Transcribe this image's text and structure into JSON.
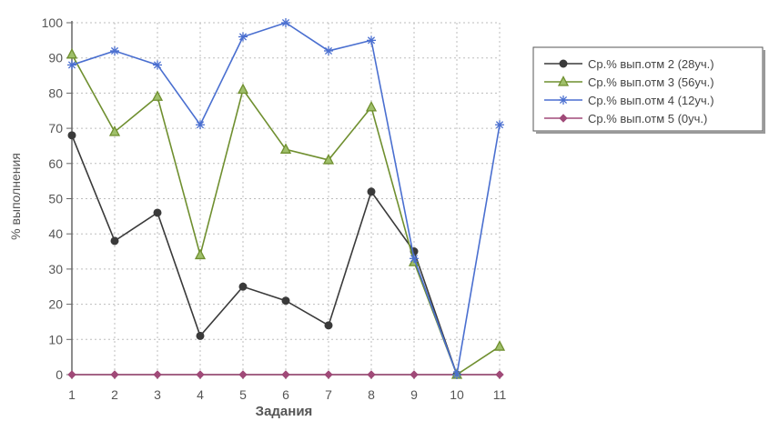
{
  "chart_data": {
    "type": "line",
    "title": "",
    "xlabel": "Задания",
    "ylabel": "% выполнения",
    "categories": [
      "1",
      "2",
      "3",
      "4",
      "5",
      "6",
      "7",
      "8",
      "9",
      "10",
      "11"
    ],
    "yticks": [
      "0",
      "10",
      "20",
      "30",
      "40",
      "50",
      "60",
      "70",
      "80",
      "90",
      "100"
    ],
    "ylim": [
      0,
      100
    ],
    "grid": true,
    "legend_position": "right",
    "series": [
      {
        "name": "Ср.% вып.отм 2 (28уч.)",
        "color": "#3a3a3a",
        "marker": "circle",
        "values": [
          68,
          38,
          46,
          11,
          25,
          21,
          14,
          52,
          35,
          0,
          null
        ]
      },
      {
        "name": "Ср.% вып.отм 3 (56уч.)",
        "color": "#6f8f2f",
        "marker": "triangle",
        "values": [
          91,
          69,
          79,
          34,
          81,
          64,
          61,
          76,
          32,
          0,
          8
        ]
      },
      {
        "name": "Ср.% вып.отм 4 (12уч.)",
        "color": "#4a6fd0",
        "marker": "star",
        "values": [
          88,
          92,
          88,
          71,
          96,
          100,
          92,
          95,
          33,
          0,
          71
        ]
      },
      {
        "name": "Ср.% вып.отм 5 (0уч.)",
        "color": "#a04a78",
        "marker": "diamond",
        "values": [
          0,
          0,
          0,
          0,
          0,
          0,
          0,
          0,
          0,
          0,
          0
        ]
      }
    ]
  }
}
